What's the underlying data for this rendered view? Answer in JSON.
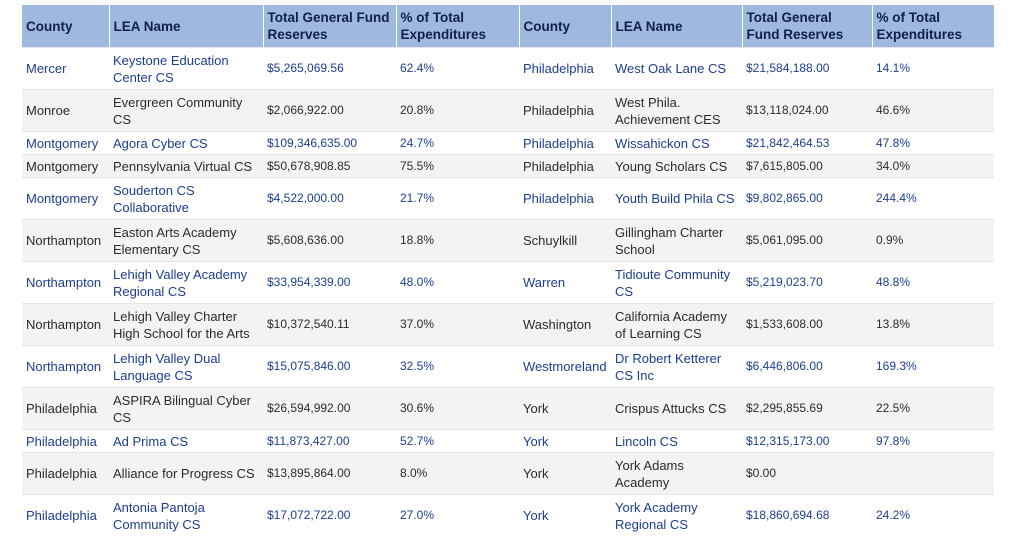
{
  "headers": [
    "County",
    "LEA Name",
    "Total General Fund Reserves",
    "% of Total Expenditures",
    "County",
    "LEA Name",
    "Total General Fund Reserves",
    "% of Total Expenditures"
  ],
  "rows": [
    {
      "style": "alt",
      "h": "r2",
      "cells": [
        "Mercer",
        "Keystone Education Center CS",
        "$5,265,069.56",
        "62.4%",
        "Philadelphia",
        "West Oak Lane CS",
        "$21,584,188.00",
        "14.1%"
      ]
    },
    {
      "style": "plain",
      "h": "r2",
      "cells": [
        "Monroe",
        "Evergreen Community CS",
        "$2,066,922.00",
        "20.8%",
        "Philadelphia",
        "West Phila. Achievement CES",
        "$13,118,024.00",
        "46.6%"
      ]
    },
    {
      "style": "alt",
      "h": "r1",
      "cells": [
        "Montgomery",
        "Agora Cyber CS",
        "$109,346,635.00",
        "24.7%",
        "Philadelphia",
        "Wissahickon CS",
        "$21,842,464.53",
        "47.8%"
      ]
    },
    {
      "style": "plain",
      "h": "r1",
      "cells": [
        "Montgomery",
        "Pennsylvania Virtual CS",
        "$50,678,908.85",
        "75.5%",
        "Philadelphia",
        "Young Scholars CS",
        "$7,615,805.00",
        "34.0%"
      ]
    },
    {
      "style": "alt",
      "h": "r2",
      "cells": [
        "Montgomery",
        "Souderton CS Collaborative",
        "$4,522,000.00",
        "21.7%",
        "Philadelphia",
        "Youth Build Phila CS",
        "$9,802,865.00",
        "244.4%"
      ]
    },
    {
      "style": "plain",
      "h": "r2",
      "cells": [
        "Northampton",
        "Easton Arts Academy Elementary CS",
        "$5,608,636.00",
        "18.8%",
        "Schuylkill",
        "Gillingham Charter School",
        "$5,061,095.00",
        "0.9%"
      ]
    },
    {
      "style": "alt",
      "h": "r2",
      "cells": [
        "Northampton",
        "Lehigh Valley Academy Regional CS",
        "$33,954,339.00",
        "48.0%",
        "Warren",
        "Tidioute Community CS",
        "$5,219,023.70",
        "48.8%"
      ]
    },
    {
      "style": "plain",
      "h": "r2",
      "cells": [
        "Northampton",
        "Lehigh Valley Charter High School for the Arts",
        "$10,372,540.11",
        "37.0%",
        "Washington",
        "California Academy of Learning CS",
        "$1,533,608.00",
        "13.8%"
      ]
    },
    {
      "style": "alt",
      "h": "r2",
      "cells": [
        "Northampton",
        "Lehigh Valley Dual Language CS",
        "$15,075,846.00",
        "32.5%",
        "Westmoreland",
        "Dr Robert Ketterer CS Inc",
        "$6,446,806.00",
        "169.3%"
      ]
    },
    {
      "style": "plain",
      "h": "r2",
      "cells": [
        "Philadelphia",
        "ASPIRA Bilingual Cyber CS",
        "$26,594,992.00",
        "30.6%",
        "York",
        "Crispus Attucks CS",
        "$2,295,855.69",
        "22.5%"
      ]
    },
    {
      "style": "alt",
      "h": "r1",
      "cells": [
        "Philadelphia",
        "Ad Prima CS",
        "$11,873,427.00",
        "52.7%",
        "York",
        "Lincoln CS",
        "$12,315,173.00",
        "97.8%"
      ]
    },
    {
      "style": "plain",
      "h": "r2",
      "cells": [
        "Philadelphia",
        "Alliance for Progress CS",
        "$13,895,864.00",
        "8.0%",
        "York",
        "York Adams Academy",
        "$0.00",
        ""
      ]
    },
    {
      "style": "alt",
      "h": "r2",
      "cells": [
        "Philadelphia",
        "Antonia Pantoja Community CS",
        "$17,072,722.00",
        "27.0%",
        "York",
        "York Academy Regional CS",
        "$18,860,694.68",
        "24.2%"
      ]
    }
  ]
}
